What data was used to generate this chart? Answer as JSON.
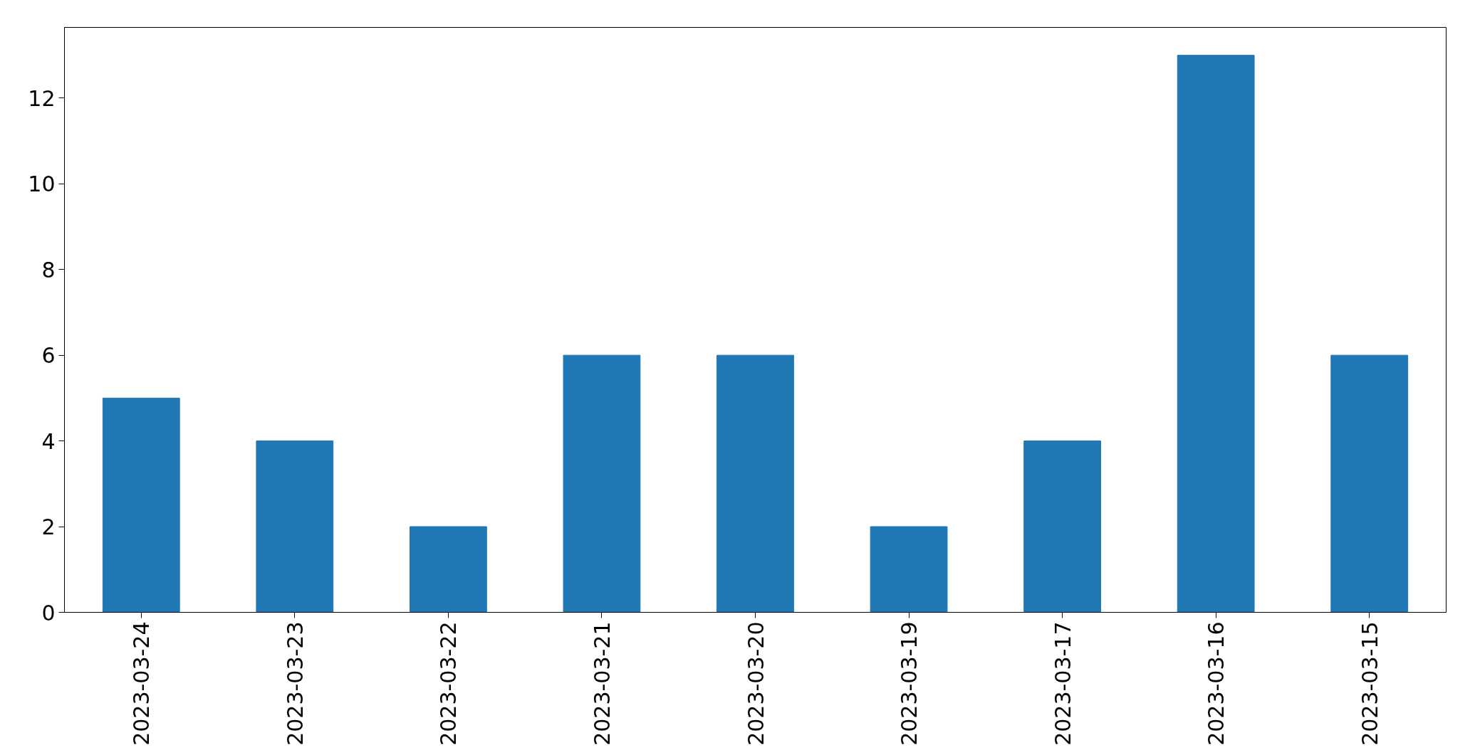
{
  "chart_data": {
    "type": "bar",
    "categories": [
      "2023-03-24",
      "2023-03-23",
      "2023-03-22",
      "2023-03-21",
      "2023-03-20",
      "2023-03-19",
      "2023-03-17",
      "2023-03-16",
      "2023-03-15"
    ],
    "values": [
      5,
      4,
      2,
      6,
      6,
      2,
      4,
      13,
      6
    ],
    "color": "#1f77b4",
    "ylim": [
      0,
      13.65
    ],
    "yticks": [
      0,
      2,
      4,
      6,
      8,
      10,
      12
    ]
  }
}
